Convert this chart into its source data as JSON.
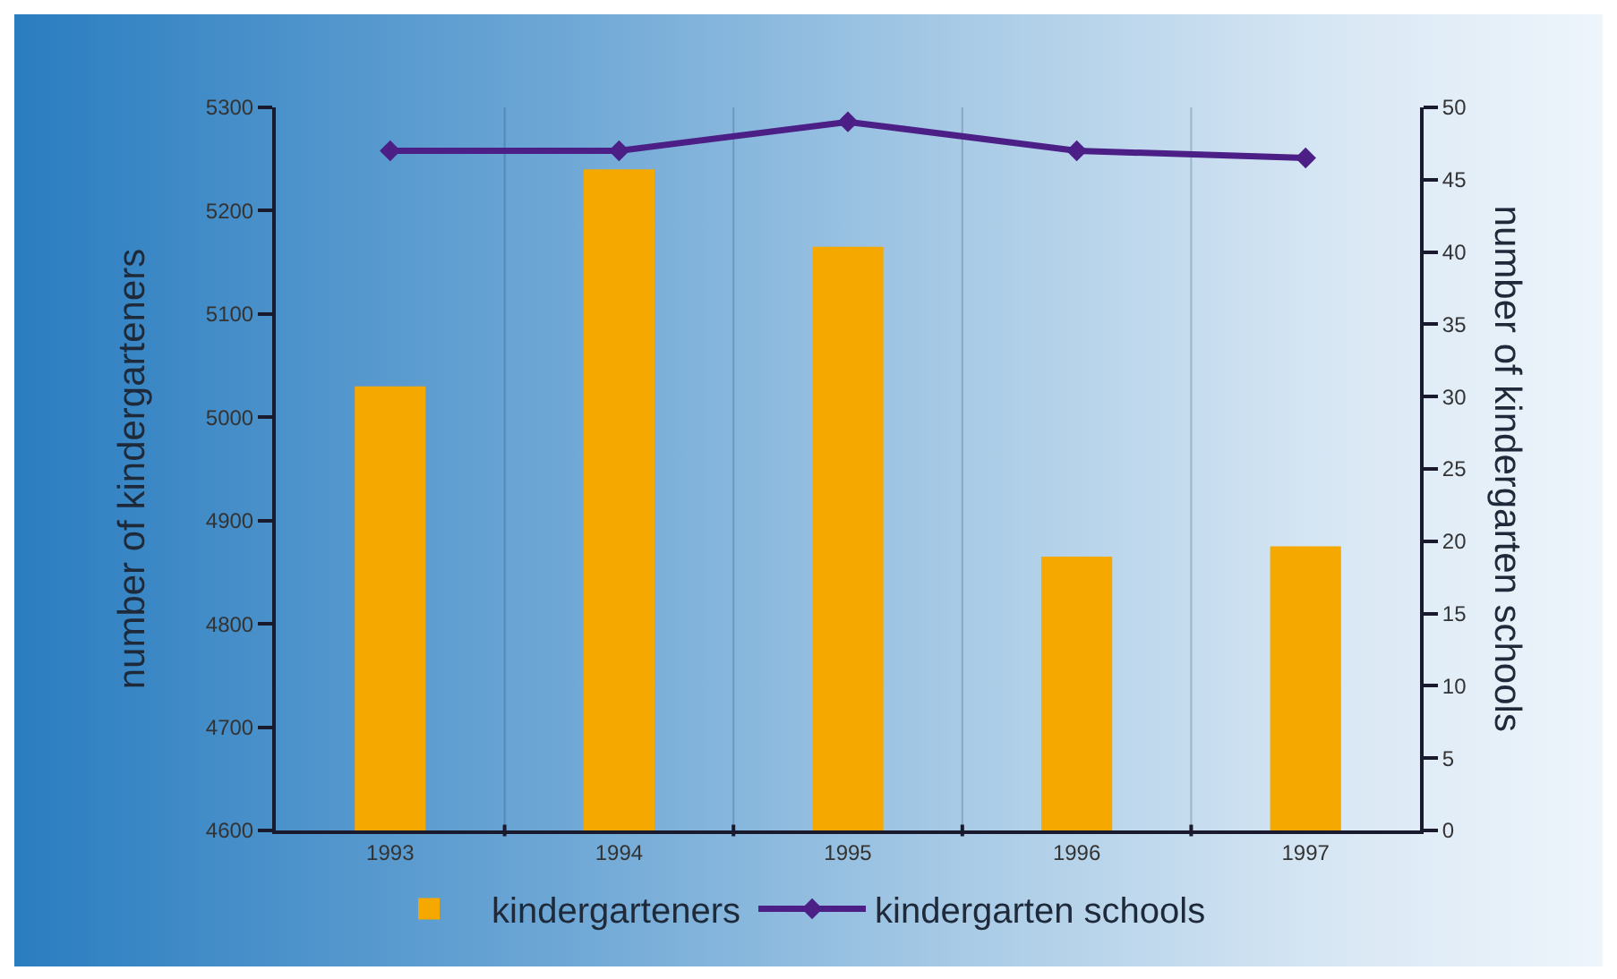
{
  "chart_data": {
    "type": "bar",
    "categories": [
      "1993",
      "1994",
      "1995",
      "1996",
      "1997"
    ],
    "series": [
      {
        "name": "kindergarteners",
        "color": "#f5a800",
        "values": [
          5030,
          5240,
          5165,
          4865,
          4875
        ]
      },
      {
        "name": "kindergarten schools",
        "type": "line",
        "axis": "y2",
        "color": "#4b1f86",
        "values": [
          47,
          47,
          49,
          47,
          46.5
        ]
      }
    ],
    "ylabel": "number of kindergarteners",
    "y2label": "number of kindergarten schools",
    "ylim": [
      4600,
      5300
    ],
    "yticks": [
      4600,
      4700,
      4800,
      4900,
      5000,
      5100,
      5200,
      5300
    ],
    "y2lim": [
      0,
      50
    ],
    "y2ticks": [
      0,
      5,
      10,
      15,
      20,
      25,
      30,
      35,
      40,
      45,
      50
    ],
    "legend": "bottom",
    "grid": "x",
    "marker": "diamond"
  }
}
